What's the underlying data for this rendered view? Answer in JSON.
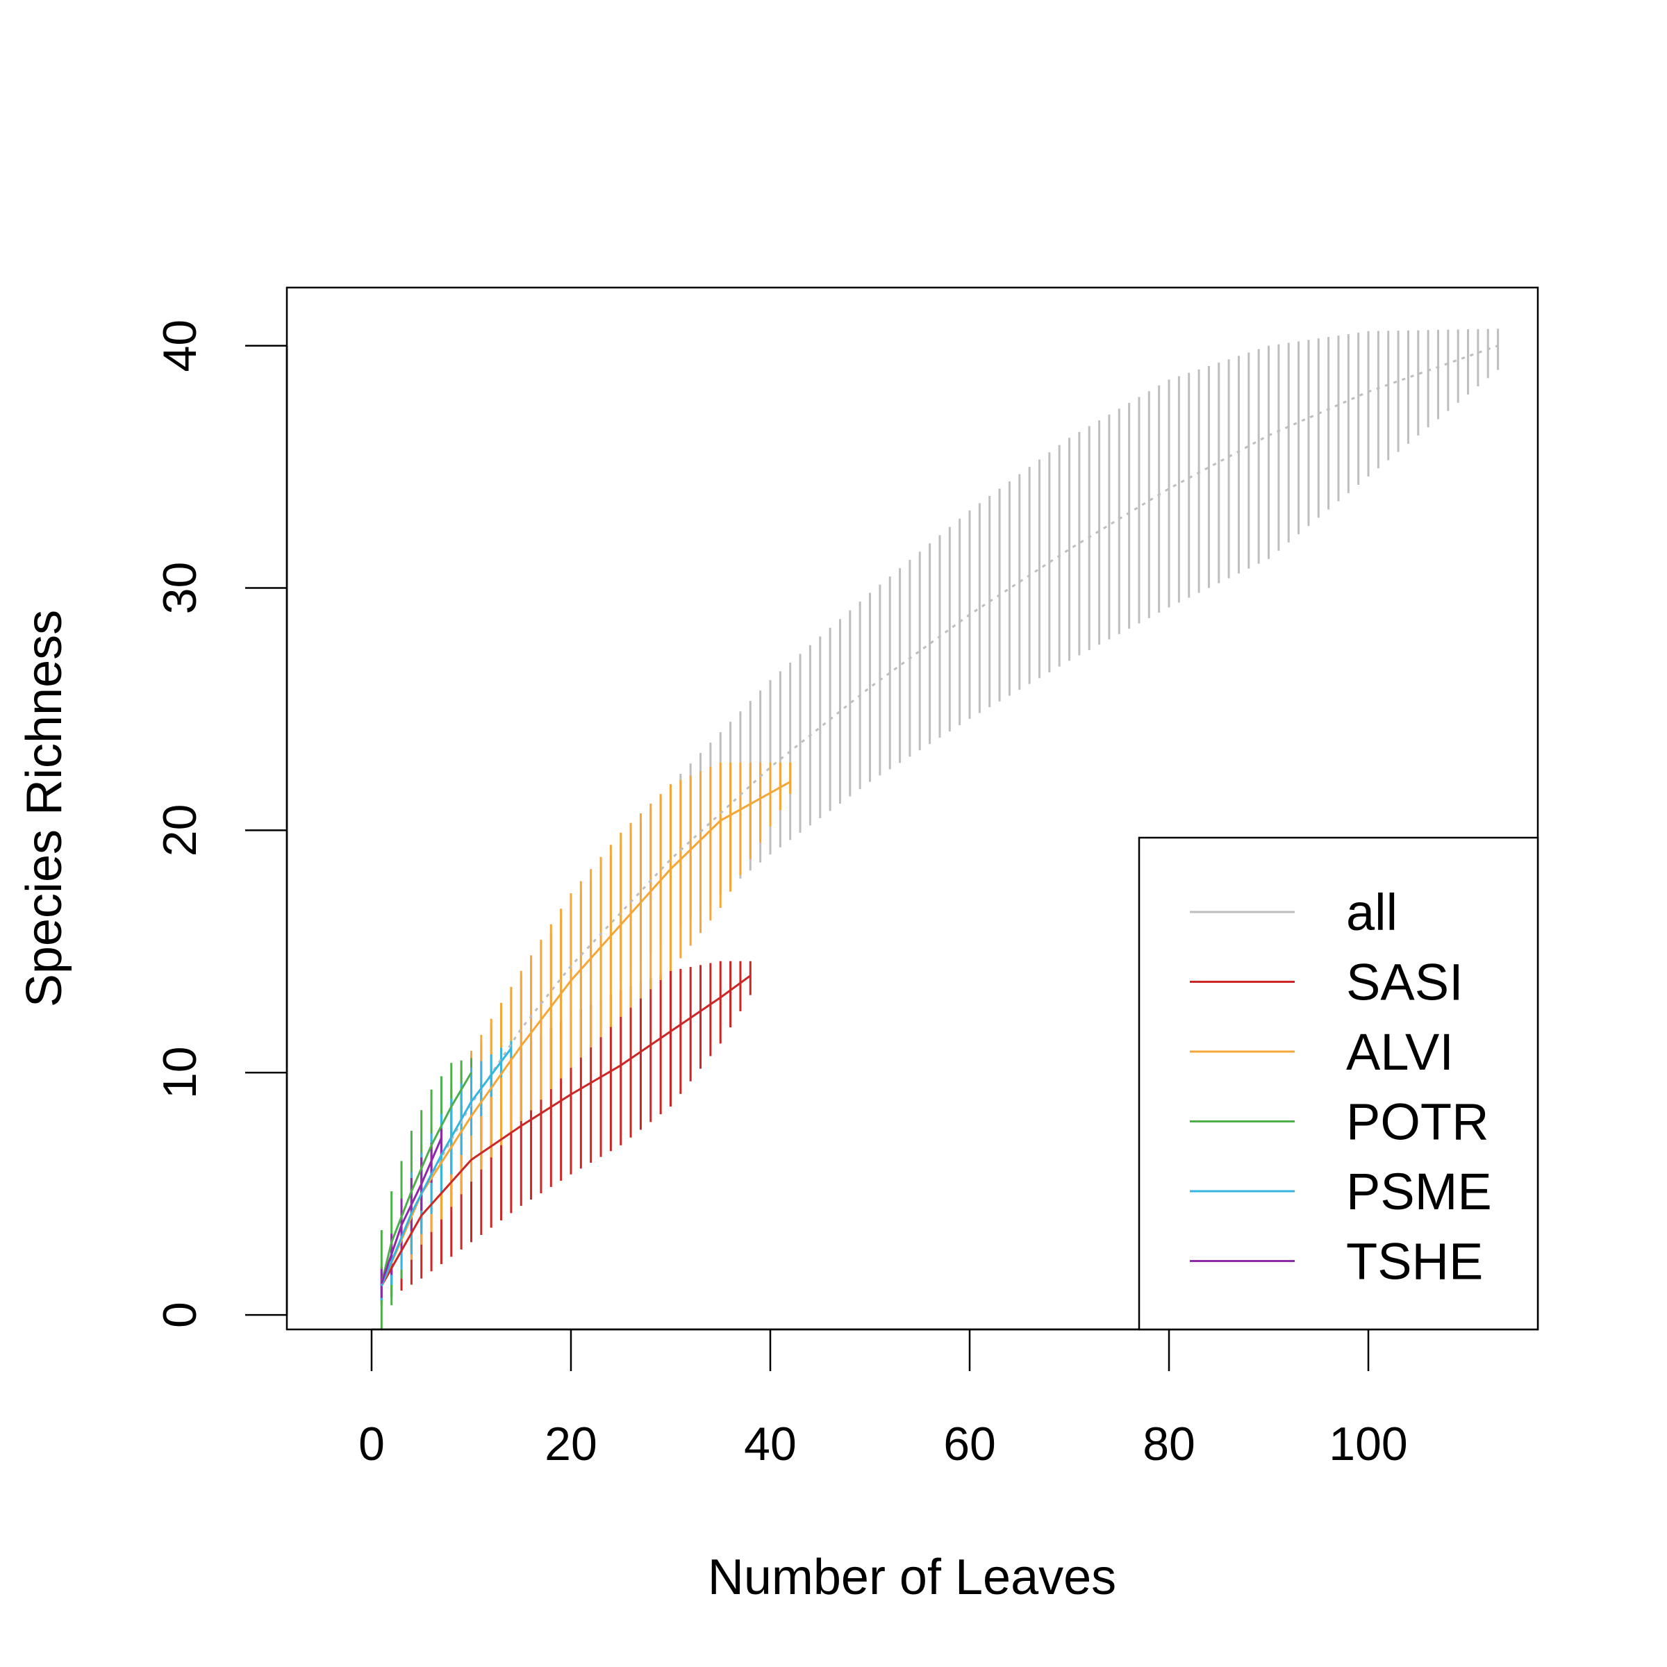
{
  "chart_data": {
    "type": "line",
    "title": "",
    "xlabel": "Number of Leaves",
    "ylabel": "Species Richness",
    "xlim": [
      -8.5,
      117
    ],
    "ylim": [
      -0.6,
      42.4
    ],
    "x_ticks": [
      "0",
      "20",
      "40",
      "60",
      "80",
      "100"
    ],
    "x_tick_values": [
      0,
      20,
      40,
      60,
      80,
      100
    ],
    "y_ticks": [
      "0",
      "10",
      "20",
      "30",
      "40"
    ],
    "y_tick_values": [
      0,
      10,
      20,
      30,
      40
    ],
    "grid": false,
    "legend_position": "bottom-right",
    "error_bars": "vertical segments at each number of leaves",
    "series": [
      {
        "name": "all",
        "color": "#bebebe",
        "line_style": "dotted",
        "x": [
          1,
          5,
          10,
          15,
          20,
          30,
          40,
          50,
          60,
          70,
          80,
          90,
          100,
          113
        ],
        "y": [
          1.2,
          5.0,
          8.7,
          11.8,
          14.4,
          18.8,
          22.6,
          25.9,
          28.9,
          31.6,
          34.1,
          36.3,
          38.1,
          40.0
        ],
        "lo": [
          0.4,
          3.6,
          6.8,
          9.6,
          11.9,
          15.7,
          19.0,
          22.0,
          24.6,
          27.0,
          29.2,
          31.2,
          34.6,
          39.0
        ],
        "hi": [
          2.0,
          6.4,
          10.6,
          14.0,
          16.9,
          21.9,
          26.2,
          29.8,
          33.2,
          36.2,
          38.6,
          40.0,
          40.6,
          40.7
        ]
      },
      {
        "name": "SASI",
        "color": "#cd2626",
        "line_style": "solid",
        "x": [
          1,
          5,
          10,
          15,
          20,
          25,
          30,
          35,
          38
        ],
        "y": [
          1.2,
          4.1,
          6.4,
          7.8,
          9.1,
          10.3,
          11.7,
          13.1,
          14.0
        ],
        "lo": [
          0.5,
          1.5,
          3.0,
          4.5,
          5.8,
          7.0,
          8.6,
          11.2,
          13.2
        ],
        "hi": [
          2.0,
          6.5,
          9.2,
          11.0,
          12.4,
          13.4,
          14.2,
          14.6,
          14.6
        ]
      },
      {
        "name": "ALVI",
        "color": "#f4a636",
        "line_style": "solid",
        "x": [
          1,
          5,
          10,
          15,
          20,
          25,
          30,
          35,
          42
        ],
        "y": [
          1.2,
          5.0,
          8.2,
          11.1,
          13.8,
          16.1,
          18.4,
          20.4,
          22.0
        ],
        "lo": [
          0.4,
          2.9,
          5.5,
          8.0,
          10.2,
          12.3,
          14.2,
          16.8,
          21.5
        ],
        "hi": [
          2.0,
          7.0,
          10.9,
          14.2,
          17.4,
          19.9,
          21.9,
          22.8,
          22.8
        ]
      },
      {
        "name": "POTR",
        "color": "#4daf4a",
        "line_style": "solid",
        "x": [
          1,
          2,
          4,
          6,
          8,
          10
        ],
        "y": [
          1.3,
          3.0,
          5.1,
          7.0,
          8.6,
          10.0
        ],
        "lo": [
          -0.6,
          0.4,
          2.6,
          4.6,
          6.8,
          9.3
        ],
        "hi": [
          3.5,
          5.1,
          7.6,
          9.3,
          10.4,
          10.6
        ]
      },
      {
        "name": "PSME",
        "color": "#36b5e0",
        "line_style": "solid",
        "x": [
          1,
          4,
          7,
          10,
          14
        ],
        "y": [
          1.2,
          4.2,
          6.6,
          8.8,
          11.0
        ],
        "lo": [
          0.6,
          2.5,
          5.0,
          7.4,
          10.6
        ],
        "hi": [
          1.8,
          5.9,
          8.3,
          10.2,
          11.3
        ]
      },
      {
        "name": "TSHE",
        "color": "#8e2aa8",
        "line_style": "solid",
        "x": [
          1,
          3,
          5,
          7
        ],
        "y": [
          1.3,
          3.7,
          5.4,
          7.3
        ],
        "lo": [
          0.7,
          2.6,
          4.3,
          6.6
        ],
        "hi": [
          1.9,
          4.8,
          6.5,
          7.7
        ]
      }
    ]
  }
}
